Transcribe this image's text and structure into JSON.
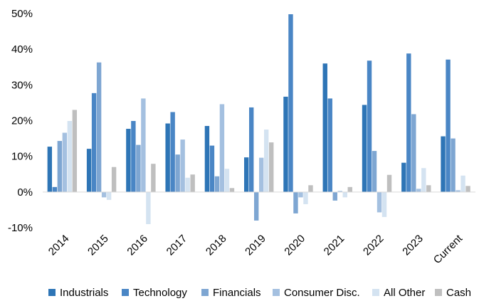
{
  "chart_data": {
    "type": "bar",
    "title": "",
    "xlabel": "",
    "ylabel": "",
    "ylim": [
      -10,
      50
    ],
    "yticks": [
      -10,
      0,
      10,
      20,
      30,
      40,
      50
    ],
    "ytick_format": "percent",
    "grid": false,
    "legend_position": "bottom",
    "categories": [
      "2014",
      "2015",
      "2016",
      "2017",
      "2018",
      "2019",
      "2020",
      "2021",
      "2022",
      "2023",
      "Current"
    ],
    "series": [
      {
        "name": "Industrials",
        "color": "#2E75B6",
        "values": [
          12.7,
          12.1,
          17.7,
          19.2,
          18.5,
          9.7,
          26.7,
          36.0,
          24.4,
          8.2,
          15.6
        ]
      },
      {
        "name": "Technology",
        "color": "#4A86C5",
        "values": [
          1.4,
          27.7,
          19.9,
          22.4,
          13.0,
          23.7,
          49.8,
          26.2,
          36.8,
          38.8,
          37.1
        ]
      },
      {
        "name": "Financials",
        "color": "#7EA6D2",
        "values": [
          14.3,
          36.3,
          13.2,
          10.5,
          4.4,
          -8.0,
          -6.0,
          -2.4,
          11.5,
          21.8,
          15.0
        ]
      },
      {
        "name": "Consumer Disc.",
        "color": "#A4C0E0",
        "values": [
          16.6,
          -1.5,
          26.2,
          14.7,
          24.6,
          9.6,
          -1.5,
          0.3,
          -5.7,
          0.9,
          0.5
        ]
      },
      {
        "name": "All Other",
        "color": "#D4E3F1",
        "values": [
          19.9,
          -2.2,
          -9.0,
          4.0,
          6.5,
          17.5,
          -3.4,
          -1.5,
          -7.0,
          6.7,
          4.6
        ]
      },
      {
        "name": "Cash",
        "color": "#BFBFBF",
        "values": [
          23.0,
          7.0,
          7.9,
          4.9,
          1.1,
          13.9,
          1.9,
          1.4,
          4.8,
          1.9,
          1.7
        ]
      }
    ]
  }
}
